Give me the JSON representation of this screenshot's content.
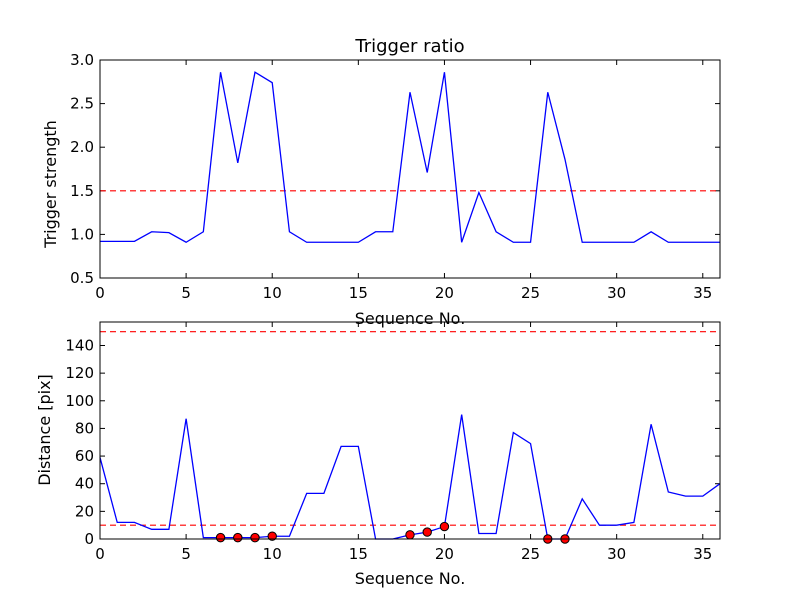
{
  "chart_data": [
    {
      "type": "line",
      "title": "Trigger ratio",
      "xlabel": "Sequence No.",
      "ylabel": "Trigger strength",
      "xlim": [
        0,
        36
      ],
      "ylim": [
        0.5,
        3.0
      ],
      "xticks": [
        0,
        5,
        10,
        15,
        20,
        25,
        30,
        35
      ],
      "yticks": [
        0.5,
        1.0,
        1.5,
        2.0,
        2.5,
        3.0
      ],
      "xtick_labels": [
        "0",
        "5",
        "10",
        "15",
        "20",
        "25",
        "30",
        "35"
      ],
      "ytick_labels": [
        "0.5",
        "1.0",
        "1.5",
        "2.0",
        "2.5",
        "3.0"
      ],
      "grid": false,
      "series": [
        {
          "color": "#0000ff",
          "x": [
            0,
            1,
            2,
            3,
            4,
            5,
            6,
            7,
            8,
            9,
            10,
            11,
            12,
            13,
            14,
            15,
            16,
            17,
            18,
            19,
            20,
            21,
            22,
            23,
            24,
            25,
            26,
            27,
            28,
            29,
            30,
            31,
            32,
            33,
            34,
            35,
            36
          ],
          "values": [
            0.92,
            0.92,
            0.92,
            1.03,
            1.02,
            0.91,
            1.03,
            2.86,
            1.82,
            2.86,
            2.74,
            1.03,
            0.91,
            0.91,
            0.91,
            0.91,
            1.03,
            1.03,
            2.63,
            1.71,
            2.86,
            0.91,
            1.48,
            1.03,
            0.91,
            0.91,
            2.63,
            1.86,
            0.91,
            0.91,
            0.91,
            0.91,
            1.03,
            0.91,
            0.91,
            0.91,
            0.91
          ]
        }
      ],
      "hlines": [
        {
          "y": 1.5,
          "color": "#ff0000",
          "style": "dashed"
        }
      ]
    },
    {
      "type": "line",
      "title": "",
      "xlabel": "Sequence No.",
      "ylabel": "Distance [pix]",
      "xlim": [
        0,
        36
      ],
      "ylim": [
        0,
        157
      ],
      "xticks": [
        0,
        5,
        10,
        15,
        20,
        25,
        30,
        35
      ],
      "yticks": [
        0,
        20,
        40,
        60,
        80,
        100,
        120,
        140
      ],
      "xtick_labels": [
        "0",
        "5",
        "10",
        "15",
        "20",
        "25",
        "30",
        "35"
      ],
      "ytick_labels": [
        "0",
        "20",
        "40",
        "60",
        "80",
        "100",
        "120",
        "140"
      ],
      "grid": false,
      "series": [
        {
          "color": "#0000ff",
          "x": [
            0,
            1,
            2,
            3,
            4,
            5,
            6,
            7,
            8,
            9,
            10,
            11,
            12,
            13,
            14,
            15,
            16,
            17,
            18,
            19,
            20,
            21,
            22,
            23,
            24,
            25,
            26,
            27,
            28,
            29,
            30,
            31,
            32,
            33,
            34,
            35,
            36
          ],
          "values": [
            59,
            12,
            12,
            7,
            7,
            87,
            1,
            1,
            1,
            1,
            2,
            2,
            33,
            33,
            67,
            67,
            0,
            0,
            3,
            5,
            9,
            90,
            4,
            4,
            77,
            69,
            0,
            0,
            29,
            10,
            10,
            12,
            83,
            34,
            31,
            31,
            40
          ]
        }
      ],
      "markers": {
        "color": "#ff0000",
        "x": [
          7,
          8,
          9,
          10,
          18,
          19,
          20,
          26,
          27
        ],
        "values": [
          1,
          1,
          1,
          2,
          3,
          5,
          9,
          0,
          0
        ]
      },
      "hlines": [
        {
          "y": 10,
          "color": "#ff0000",
          "style": "dashed"
        },
        {
          "y": 150,
          "color": "#ff0000",
          "style": "dashed"
        }
      ]
    }
  ]
}
